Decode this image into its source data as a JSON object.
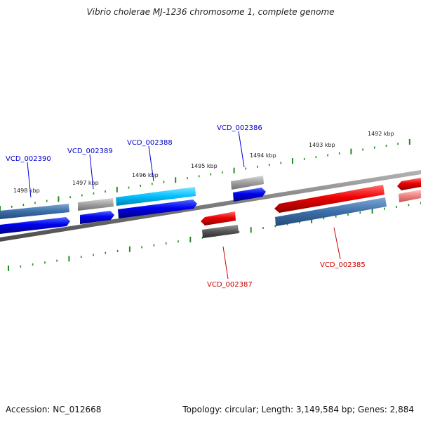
{
  "title": "Vibrio cholerae MJ-1236 chromosome 1, complete genome",
  "footer": {
    "accession": "Accession: NC_012668",
    "summary": "Topology: circular; Length: 3,149,584 bp; Genes: 2,884"
  },
  "colors": {
    "forward_label": "#0000cc",
    "reverse_label": "#cc0000",
    "tick": "#228b22",
    "backbone": "#777777"
  },
  "kbp_labels": [
    "1498 kbp",
    "1497 kbp",
    "1496 kbp",
    "1495 kbp",
    "1494 kbp",
    "1493 kbp",
    "1492 kbp"
  ],
  "gene_labels": [
    {
      "text": "VCD_002390",
      "strand": "forward"
    },
    {
      "text": "VCD_002389",
      "strand": "forward"
    },
    {
      "text": "VCD_002388",
      "strand": "forward"
    },
    {
      "text": "VCD_002386",
      "strand": "forward"
    },
    {
      "text": "VCD_002387",
      "strand": "reverse"
    },
    {
      "text": "VCD_002385",
      "strand": "reverse"
    }
  ]
}
